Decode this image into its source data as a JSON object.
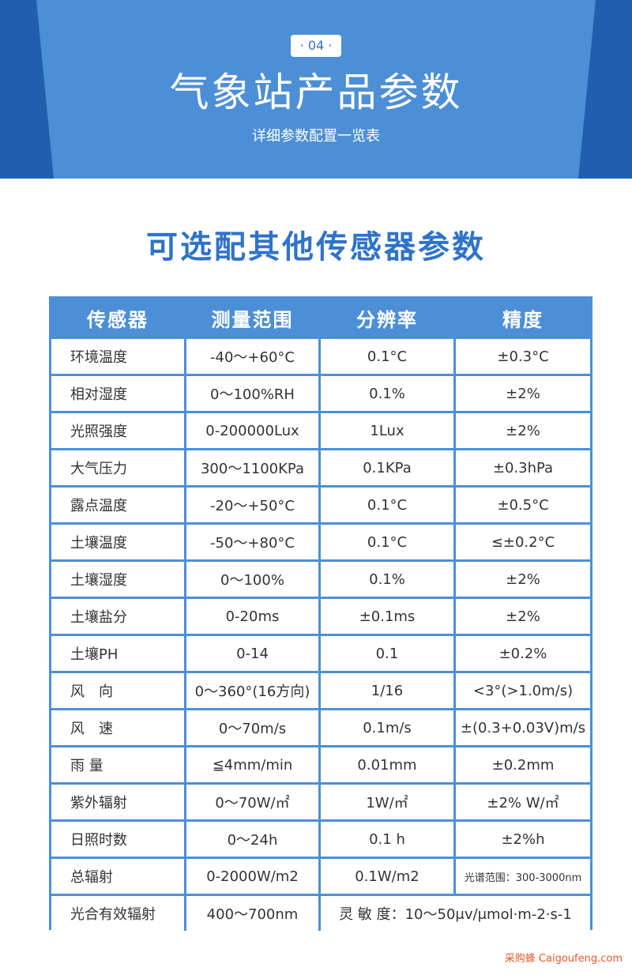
{
  "header": {
    "badge": "· 04 ·",
    "title": "气象站产品参数",
    "subtitle": "详细参数配置一览表"
  },
  "section": {
    "title": "可选配其他传感器参数"
  },
  "table": {
    "columns": [
      "传感器",
      "测量范围",
      "分辨率",
      "精度"
    ],
    "rows": [
      [
        "环境温度",
        "-40～+60°C",
        "0.1°C",
        "±0.3°C"
      ],
      [
        "相对湿度",
        "0～100%RH",
        "0.1%",
        "±2%"
      ],
      [
        "光照强度",
        "0-200000Lux",
        "1Lux",
        "±2%"
      ],
      [
        "大气压力",
        "300～1100KPa",
        "0.1KPa",
        "±0.3hPa"
      ],
      [
        "露点温度",
        "-20～+50°C",
        "0.1°C",
        "±0.5°C"
      ],
      [
        "土壤温度",
        "-50～+80°C",
        "0.1°C",
        "≤±0.2°C"
      ],
      [
        "土壤湿度",
        "0～100%",
        "0.1%",
        "±2%"
      ],
      [
        "土壤盐分",
        "0-20ms",
        "±0.1ms",
        "±2%"
      ],
      [
        "土壤PH",
        "0-14",
        "0.1",
        "±0.2%"
      ],
      [
        "风　向",
        "0～360°(16方向)",
        "1/16",
        "<3°(>1.0m/s)"
      ],
      [
        "风　速",
        "0～70m/s",
        "0.1m/s",
        "±(0.3+0.03V)m/s"
      ],
      [
        "雨 量",
        "≦4mm/min",
        "0.01mm",
        "±0.2mm"
      ],
      [
        "紫外辐射",
        "0～70W/㎡",
        "1W/㎡",
        "±2% W/㎡"
      ],
      [
        "日照时数",
        "0～24h",
        "0.1 h",
        "±2%h"
      ],
      [
        "总辐射",
        "0-2000W/m2",
        "0.1W/m2",
        "光谱范围：300-3000nm"
      ]
    ],
    "last_row": [
      "光合有效辐射",
      "400～700nm",
      "灵 敏 度：10～50μv/μmol·m-2·s-1"
    ]
  },
  "watermark": "采购蜂 Caigoufeng.com",
  "colors": {
    "accent": "#4d8fd6",
    "dark_accent": "#1f5fae",
    "title_blue": "#2f73c9",
    "watermark": "#e8572a"
  }
}
